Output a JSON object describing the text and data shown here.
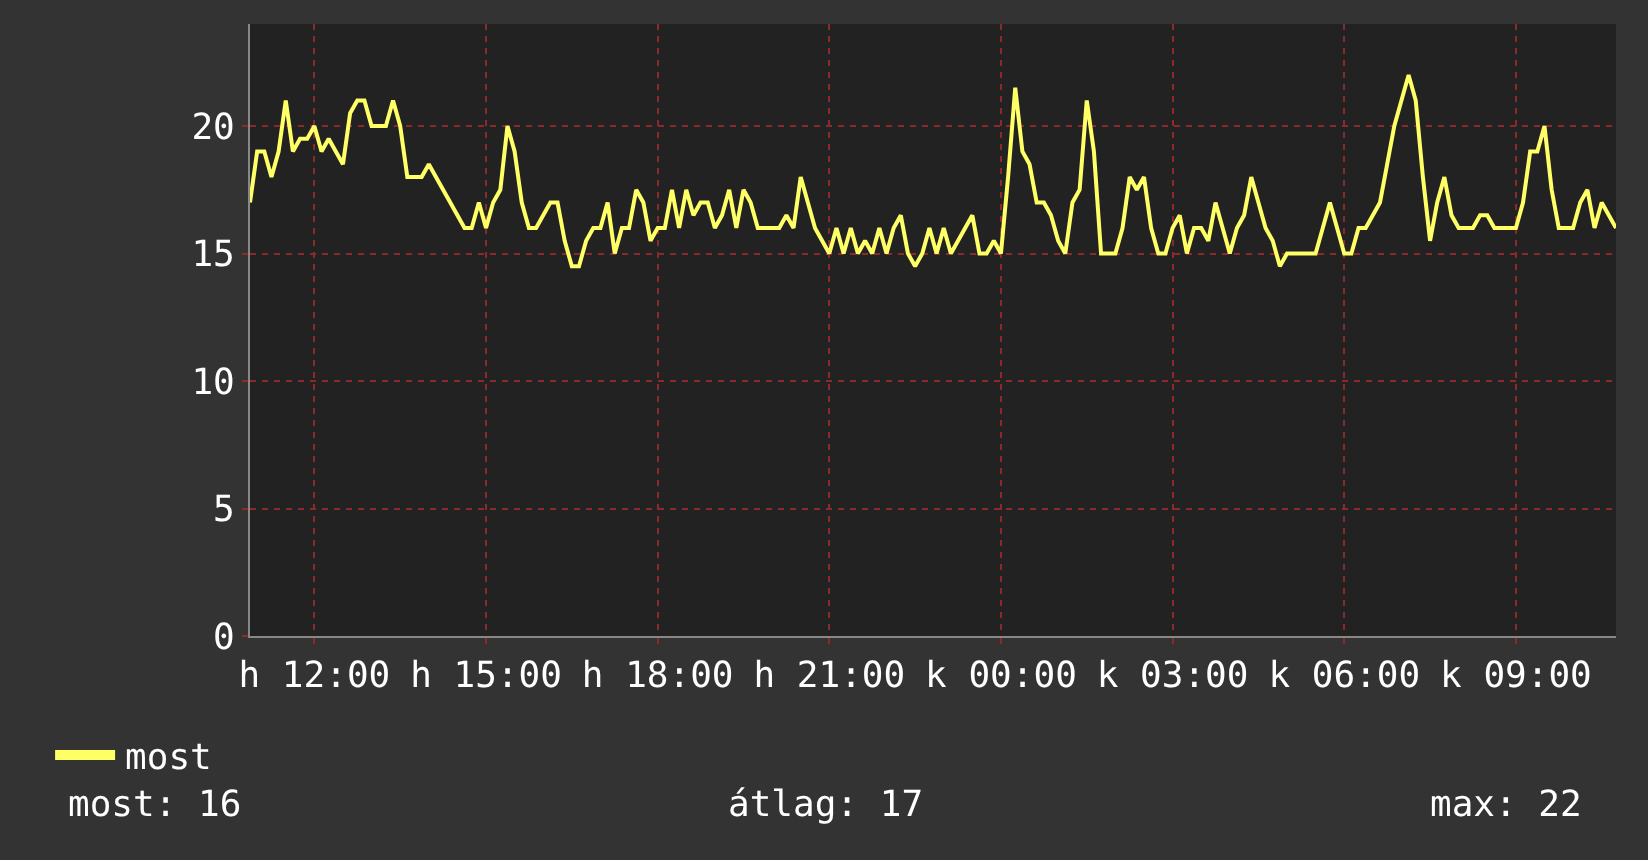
{
  "chart_data": {
    "type": "line",
    "categories": [
      null,
      null,
      null,
      null,
      null,
      null,
      null,
      null,
      null,
      "h 12:00",
      null,
      null,
      null,
      null,
      null,
      null,
      null,
      null,
      null,
      null,
      null,
      null,
      null,
      null,
      null,
      null,
      null,
      null,
      null,
      null,
      null,
      null,
      null,
      "h 15:00",
      null,
      null,
      null,
      null,
      null,
      null,
      null,
      null,
      null,
      null,
      null,
      null,
      null,
      null,
      null,
      null,
      null,
      null,
      null,
      null,
      null,
      null,
      null,
      "h 18:00",
      null,
      null,
      null,
      null,
      null,
      null,
      null,
      null,
      null,
      null,
      null,
      null,
      null,
      null,
      null,
      null,
      null,
      null,
      null,
      null,
      null,
      null,
      null,
      "h 21:00",
      null,
      null,
      null,
      null,
      null,
      null,
      null,
      null,
      null,
      null,
      null,
      null,
      null,
      null,
      null,
      null,
      null,
      null,
      null,
      null,
      null,
      null,
      null,
      "k 00:00",
      null,
      null,
      null,
      null,
      null,
      null,
      null,
      null,
      null,
      null,
      null,
      null,
      null,
      null,
      null,
      null,
      null,
      null,
      null,
      null,
      null,
      null,
      null,
      "k 03:00",
      null,
      null,
      null,
      null,
      null,
      null,
      null,
      null,
      null,
      null,
      null,
      null,
      null,
      null,
      null,
      null,
      null,
      null,
      null,
      null,
      null,
      null,
      null,
      "k 06:00",
      null,
      null,
      null,
      null,
      null,
      null,
      null,
      null,
      null,
      null,
      null,
      null,
      null,
      null,
      null,
      null,
      null,
      null,
      null,
      null,
      null,
      null,
      null,
      "k 09:00",
      null,
      null,
      null,
      null,
      null,
      null,
      null,
      null,
      null,
      null,
      null,
      null,
      null,
      null
    ],
    "series": [
      {
        "name": "most",
        "color": "#ffff66",
        "values": [
          17,
          19,
          19,
          18,
          19,
          21,
          19,
          19.5,
          19.5,
          20,
          19,
          19.5,
          19,
          18.5,
          20.5,
          21,
          21,
          20,
          20,
          20,
          21,
          20,
          18,
          18,
          18,
          18.5,
          18,
          17.5,
          17,
          16.5,
          16,
          16,
          17,
          16,
          17,
          17.5,
          20,
          19,
          17,
          16,
          16,
          16.5,
          17,
          17,
          15.5,
          14.5,
          14.5,
          15.5,
          16,
          16,
          17,
          15,
          16,
          16,
          17.5,
          17,
          15.5,
          16,
          16,
          17.5,
          16,
          17.5,
          16.5,
          17,
          17,
          16,
          16.5,
          17.5,
          16,
          17.5,
          17,
          16,
          16,
          16,
          16,
          16.5,
          16,
          18,
          17,
          16,
          15.5,
          15,
          16,
          15,
          16,
          15,
          15.5,
          15,
          16,
          15,
          16,
          16.5,
          15,
          14.5,
          15,
          16,
          15,
          16,
          15,
          15.5,
          16,
          16.5,
          15,
          15,
          15.5,
          15,
          18,
          21.5,
          19,
          18.5,
          17,
          17,
          16.5,
          15.5,
          15,
          17,
          17.5,
          21,
          19,
          15,
          15,
          15,
          16,
          18,
          17.5,
          18,
          16,
          15,
          15,
          16,
          16.5,
          15,
          16,
          16,
          15.5,
          17,
          16,
          15,
          16,
          16.5,
          18,
          17,
          16,
          15.5,
          14.5,
          15,
          15,
          15,
          15,
          15,
          16,
          17,
          16,
          15,
          15,
          16,
          16,
          16.5,
          17,
          18.5,
          20,
          21,
          22,
          21,
          18,
          15.5,
          17,
          18,
          16.5,
          16,
          16,
          16,
          16.5,
          16.5,
          16,
          16,
          16,
          16,
          17,
          19,
          19,
          20,
          17.5,
          16,
          16,
          16,
          17,
          17.5,
          16,
          17,
          16.5,
          16
        ]
      }
    ],
    "ylim": [
      0,
      24
    ],
    "yticks": [
      0,
      5,
      10,
      15,
      20
    ],
    "grid": true,
    "legend": "bottom left",
    "line_style": "solid",
    "marker": "none",
    "annotations": [
      "most: 16",
      "átlag: 17",
      "max: 22"
    ]
  }
}
